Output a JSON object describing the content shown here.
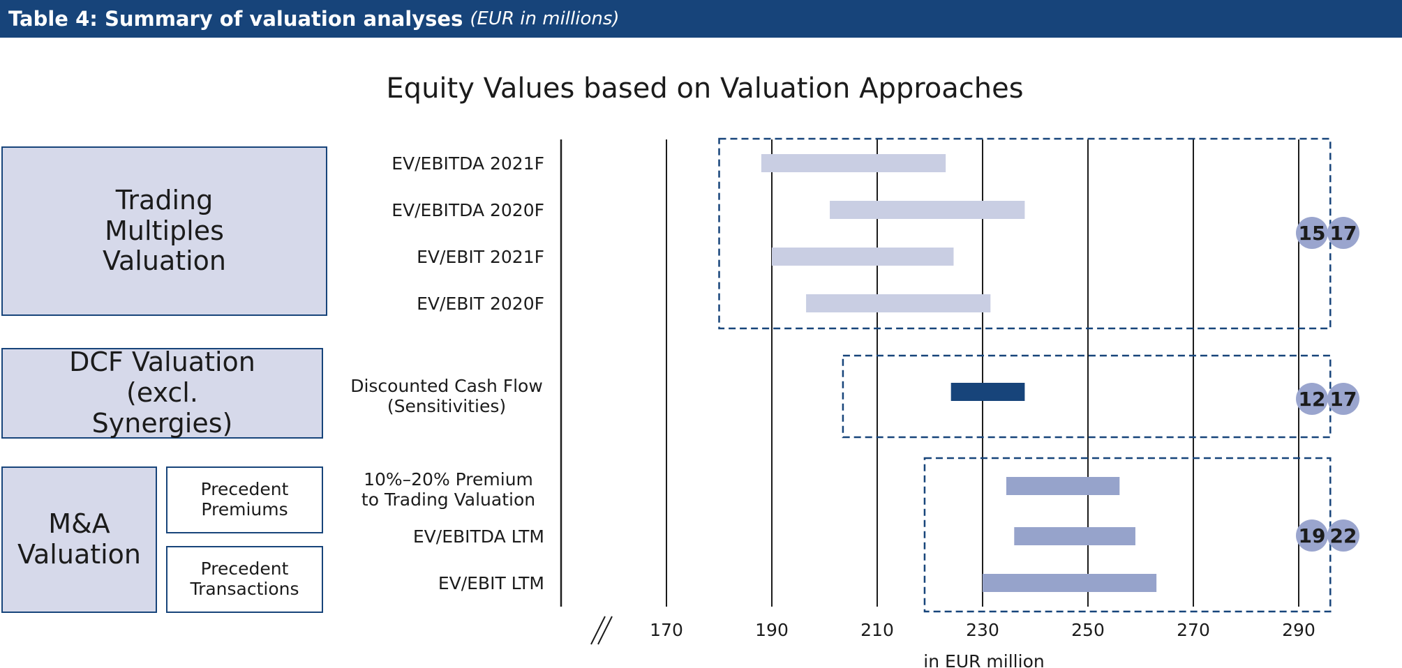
{
  "header": {
    "title": "Table 4: Summary of valuation analyses",
    "subtitle": "(EUR in millions)"
  },
  "categories": {
    "trading": "Trading Multiples Valuation",
    "dcf": "DCF Valuation (excl. Synergies)",
    "ma": "M&A Valuation",
    "precedent_premiums": "Precedent Premiums",
    "precedent_transactions": "Precedent Transactions"
  },
  "chart_data": {
    "type": "bar",
    "subtype": "floating-range",
    "title": "Equity Values based on Valuation Approaches",
    "xlabel": "in EUR million",
    "xlim": [
      150,
      296
    ],
    "xticks": [
      170,
      190,
      210,
      230,
      250,
      270,
      290
    ],
    "axis_break": true,
    "colors": {
      "trading": "#c9cee3",
      "dcf": "#17447a",
      "ma": "#96a3cb",
      "badge": "#9aa5ce",
      "frame": "#17447a"
    },
    "rows": [
      {
        "label": "EV/EBITDA 2021F",
        "group": "trading",
        "low": 188,
        "high": 223
      },
      {
        "label": "EV/EBITDA 2020F",
        "group": "trading",
        "low": 201,
        "high": 238
      },
      {
        "label": "EV/EBIT 2021F",
        "group": "trading",
        "low": 190,
        "high": 224.5
      },
      {
        "label": "EV/EBIT 2020F",
        "group": "trading",
        "low": 196.5,
        "high": 231.5
      },
      {
        "label": "Discounted Cash Flow (Sensitivities)",
        "group": "dcf",
        "low": 224,
        "high": 238
      },
      {
        "label": "10%–20% Premium to Trading Valuation",
        "group": "ma",
        "low": 234.5,
        "high": 256
      },
      {
        "label": "EV/EBITDA LTM",
        "group": "ma",
        "low": 236,
        "high": 259
      },
      {
        "label": "EV/EBIT LTM",
        "group": "ma",
        "low": 230,
        "high": 263
      }
    ],
    "groups": [
      {
        "id": "trading",
        "frame_from": 180,
        "frame_to": 296,
        "badges": [
          "15",
          "17"
        ]
      },
      {
        "id": "dcf",
        "frame_from": 203.5,
        "frame_to": 296,
        "badges": [
          "12",
          "17"
        ]
      },
      {
        "id": "ma",
        "frame_from": 219,
        "frame_to": 296,
        "badges": [
          "19",
          "22"
        ]
      }
    ]
  }
}
